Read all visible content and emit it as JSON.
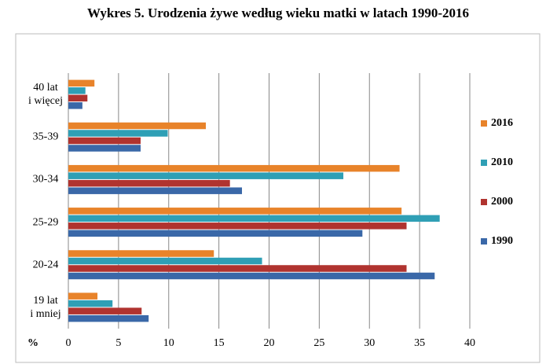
{
  "chart_data": {
    "type": "hbar",
    "title": "Wykres 5. Urodzenia żywe według wieku matki w latach 1990-2016",
    "x_label": "%",
    "categories": [
      "40 lat\ni więcej",
      "35-39",
      "30-34",
      "25-29",
      "20-24",
      "19 lat\ni mniej"
    ],
    "series": [
      {
        "name": "2016",
        "color": "#e8832a",
        "values": [
          2.6,
          13.7,
          33.0,
          33.2,
          14.5,
          2.9
        ]
      },
      {
        "name": "2010",
        "color": "#2f9fb5",
        "values": [
          1.7,
          9.9,
          27.4,
          37.0,
          19.3,
          4.4
        ]
      },
      {
        "name": "2000",
        "color": "#b0332f",
        "values": [
          1.9,
          7.2,
          16.1,
          33.7,
          33.7,
          7.3
        ]
      },
      {
        "name": "1990",
        "color": "#3a68a8",
        "values": [
          1.4,
          7.2,
          17.3,
          29.3,
          36.5,
          8.0
        ]
      }
    ],
    "xlim": [
      0,
      40
    ],
    "xticks": [
      0,
      5,
      10,
      15,
      20,
      25,
      30,
      35,
      40
    ],
    "grid": true,
    "legend": "right"
  }
}
